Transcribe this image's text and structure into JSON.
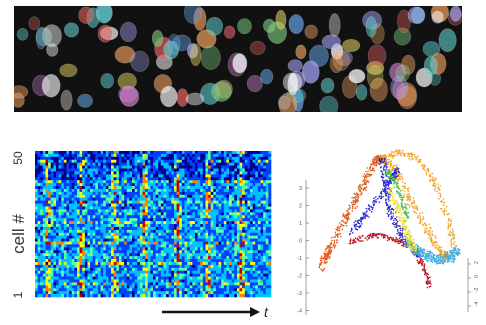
{
  "heatmap": {
    "ylabel": "cell #",
    "y_top_tick": "50",
    "y_bottom_tick": "1",
    "time_label": "t",
    "colormap": [
      "#00008f",
      "#0040ff",
      "#00c0ff",
      "#60ffa0",
      "#ffff00",
      "#ff8000",
      "#c00000"
    ]
  },
  "trajectory": {
    "y_ticks": [
      "3",
      "2",
      "1",
      "0",
      "-1",
      "-2",
      "-3",
      "-4"
    ],
    "z_ticks": [
      "2",
      "0",
      "-2",
      "-4"
    ],
    "colors": [
      "#2a2ad0",
      "#e05a1a",
      "#f5a020",
      "#c01828",
      "#40b0e0",
      "#e8e040",
      "#50c050"
    ]
  },
  "micrograph": {
    "cell_colors": [
      "#e86060",
      "#60a0e0",
      "#e0d060",
      "#80d080",
      "#d080d0",
      "#60d0d0",
      "#f0a060",
      "#a0a0f0",
      "#ffffff"
    ]
  }
}
